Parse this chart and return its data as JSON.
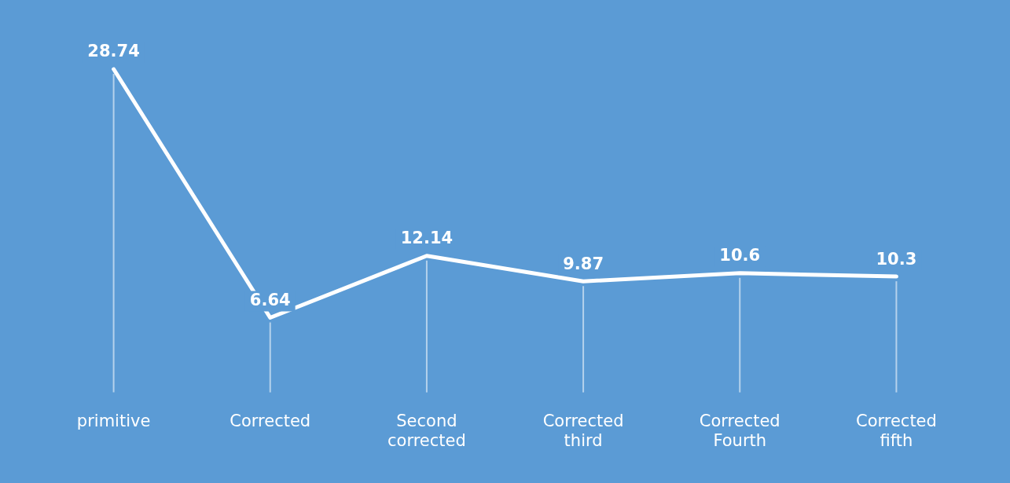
{
  "chart_data": {
    "type": "line",
    "categories": [
      "primitive",
      "Corrected",
      "Second corrected",
      "Corrected third",
      "Corrected Fourth",
      "Corrected fifth"
    ],
    "series": [
      {
        "color": "#ffffff",
        "values": [
          28.74,
          6.64,
          12.14,
          9.87,
          10.6,
          10.3
        ]
      }
    ],
    "data_labels": true,
    "grid": "x",
    "legend": false,
    "line_style": "solid"
  }
}
